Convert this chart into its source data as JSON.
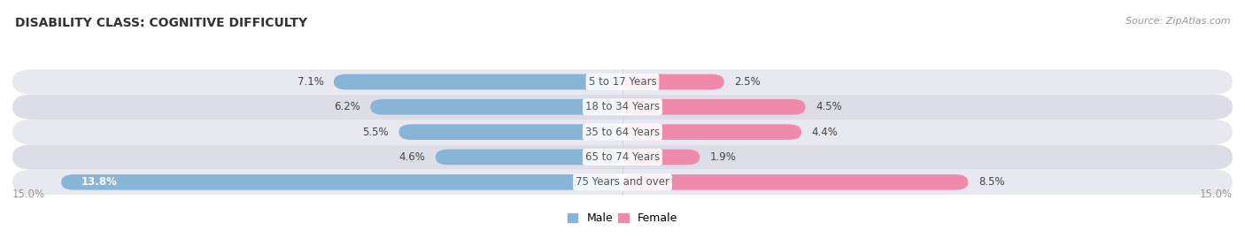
{
  "title": "DISABILITY CLASS: COGNITIVE DIFFICULTY",
  "source_text": "Source: ZipAtlas.com",
  "categories": [
    "5 to 17 Years",
    "18 to 34 Years",
    "35 to 64 Years",
    "65 to 74 Years",
    "75 Years and over"
  ],
  "male_values": [
    7.1,
    6.2,
    5.5,
    4.6,
    13.8
  ],
  "female_values": [
    2.5,
    4.5,
    4.4,
    1.9,
    8.5
  ],
  "max_val": 15.0,
  "male_color": "#88b4d8",
  "female_color": "#f08aaa",
  "row_bg_color": "#e8e8f0",
  "row_bg_color_alt": "#dddde8",
  "label_color": "#444444",
  "title_color": "#333333",
  "center_label_color": "#555555",
  "axis_label_color": "#999999",
  "source_color": "#999999",
  "legend_male_color": "#88b4d8",
  "legend_female_color": "#f08aaa",
  "fig_bg_color": "#ffffff",
  "center_line_color": "#cccccc"
}
